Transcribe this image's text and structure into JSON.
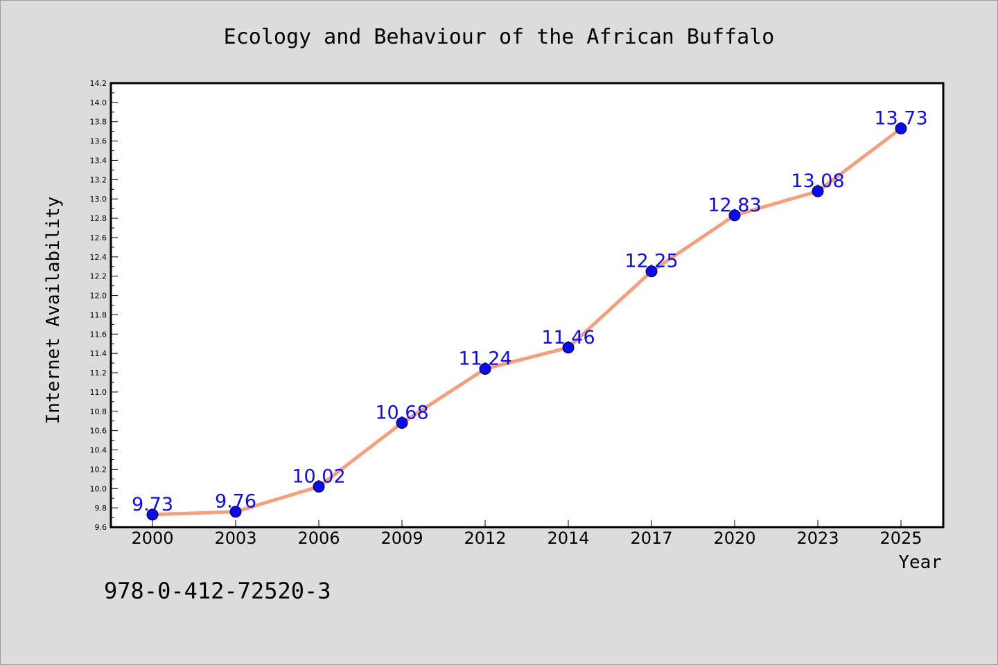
{
  "chart_data": {
    "type": "line",
    "title": "Ecology and Behaviour of the African Buffalo",
    "xlabel": "Year",
    "ylabel": "Internet Availability",
    "categories": [
      "2000",
      "2003",
      "2006",
      "2009",
      "2012",
      "2014",
      "2017",
      "2020",
      "2023",
      "2025"
    ],
    "series": [
      {
        "values": [
          9.73,
          9.76,
          10.02,
          10.68,
          11.24,
          11.46,
          12.25,
          12.83,
          13.08,
          13.73
        ]
      }
    ],
    "data_labels": [
      "9.73",
      "9.76",
      "10.02",
      "10.68",
      "11.24",
      "11.46",
      "12.25",
      "12.83",
      "13.08",
      "13.73"
    ],
    "ylim": [
      9.6,
      14.2
    ],
    "yticks": [
      "9.6",
      "9.8",
      "10.0",
      "10.2",
      "10.4",
      "10.6",
      "10.8",
      "11.0",
      "11.2",
      "11.4",
      "11.6",
      "11.8",
      "12.0",
      "12.2",
      "12.4",
      "12.6",
      "12.8",
      "13.0",
      "13.2",
      "13.4",
      "13.6",
      "13.8",
      "14.0",
      "14.2"
    ],
    "grid": false,
    "legend": "none",
    "colors": {
      "line": "#f4a07e",
      "marker": "#0a0af0",
      "label": "#0a0af0",
      "plot_bg": "#ffffff",
      "page_bg": "#dcdcdc"
    }
  },
  "footnote": "978-0-412-72520-3"
}
